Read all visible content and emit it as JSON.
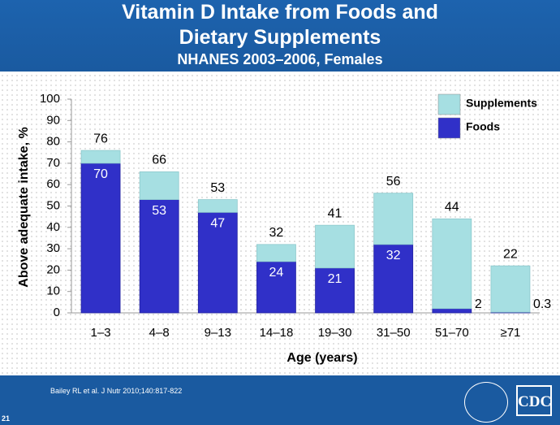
{
  "chart_data": {
    "type": "stacked_bar",
    "title": "Vitamin D Intake from Foods and Dietary Supplements",
    "subtitle": "NHANES 2003–2006, Females",
    "x_label": "Age (years)",
    "y_label": "Above adequate intake, %",
    "categories": [
      "1–3",
      "4–8",
      "9–13",
      "14–18",
      "19–30",
      "31–50",
      "51–70",
      "≥71"
    ],
    "series": [
      {
        "name": "Foods",
        "color": "#3030c8",
        "values": [
          70,
          53,
          47,
          24,
          21,
          32,
          2,
          0.3
        ]
      },
      {
        "name": "Supplements",
        "color": "#a6dfe2",
        "values": [
          6,
          13,
          6,
          8,
          20,
          24,
          42,
          21.7
        ]
      }
    ],
    "totals": [
      76,
      66,
      53,
      32,
      41,
      56,
      44,
      22
    ],
    "ylim": [
      0,
      100
    ],
    "yticks": [
      0,
      10,
      20,
      30,
      40,
      50,
      60,
      70,
      80,
      90,
      100
    ],
    "legend": "top-right"
  },
  "footer": {
    "citation": "Bailey RL et al. J Nutr 2010;140:817-822",
    "slide_number": "21",
    "logo": "CDC"
  }
}
